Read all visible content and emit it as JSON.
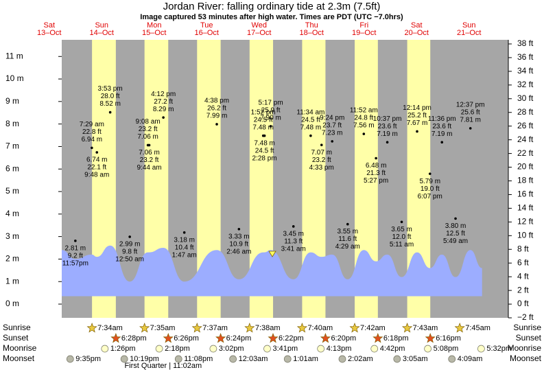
{
  "chart_data": {
    "type": "tide",
    "title": "Jordan River: falling  ordinary tide at 2.3m (7.5ft)",
    "subtitle": "Image captured 53 minutes after high water. Times are PDT (UTC −7.0hrs)",
    "ylim": [
      -0.61,
      11.74
    ],
    "yticks": [
      {
        "value": 0,
        "label": "0 m"
      },
      {
        "value": 1,
        "label": "1 m"
      },
      {
        "value": 2,
        "label": "2 m"
      },
      {
        "value": 3,
        "label": "3 m"
      },
      {
        "value": 4,
        "label": "4 m"
      },
      {
        "value": 5,
        "label": "5 m"
      },
      {
        "value": 6,
        "label": "6 m"
      },
      {
        "value": 7,
        "label": "7 m"
      },
      {
        "value": 8,
        "label": "8 m"
      },
      {
        "value": 9,
        "label": "9 m"
      },
      {
        "value": 10,
        "label": "10 m"
      },
      {
        "value": 11,
        "label": "11 m"
      }
    ],
    "y2lim": [
      -2,
      38.6
    ],
    "y2ticks": [
      {
        "value": -2,
        "label": "−2 ft"
      },
      {
        "value": 0,
        "label": "0 ft"
      },
      {
        "value": 2,
        "label": "2 ft"
      },
      {
        "value": 4,
        "label": "4 ft"
      },
      {
        "value": 6,
        "label": "6 ft"
      },
      {
        "value": 8,
        "label": "8 ft"
      },
      {
        "value": 10,
        "label": "10 ft"
      },
      {
        "value": 12,
        "label": "12 ft"
      },
      {
        "value": 14,
        "label": "14 ft"
      },
      {
        "value": 16,
        "label": "16 ft"
      },
      {
        "value": 18,
        "label": "18 ft"
      },
      {
        "value": 20,
        "label": "20 ft"
      },
      {
        "value": 22,
        "label": "22 ft"
      },
      {
        "value": 24,
        "label": "24 ft"
      },
      {
        "value": 26,
        "label": "26 ft"
      },
      {
        "value": 28,
        "label": "28 ft"
      },
      {
        "value": 30,
        "label": "30 ft"
      },
      {
        "value": 32,
        "label": "32 ft"
      },
      {
        "value": 34,
        "label": "34 ft"
      },
      {
        "value": 36,
        "label": "36 ft"
      },
      {
        "value": 38,
        "label": "38 ft"
      }
    ],
    "colors": {
      "night": "#a6a6a6",
      "day": "#ffffa8",
      "area": "#9cadff",
      "header": "#e00000"
    },
    "area": {
      "start": 2.4,
      "end": 1.6,
      "base": 0.35
    },
    "rows": {
      "sunrise": "Sunrise",
      "sunset": "Sunset",
      "moonrise": "Moonrise",
      "moonset": "Moonset"
    },
    "days": [
      {
        "weekday": "Sat",
        "date": "13–Oct",
        "moonset": "9:35pm",
        "tides": [
          {
            "time": "11:57pm",
            "m": 2.81,
            "m_label": "2.81 m",
            "ft": 9.2,
            "ft_label": "9.2 ft",
            "curve": 2.0
          }
        ]
      },
      {
        "weekday": "Sun",
        "date": "14–Oct",
        "sunrise": "7:34am",
        "sunset": "6:28pm",
        "moonrise": "1:26pm",
        "moonset": "10:19pm",
        "tides": [
          {
            "time": "7:29 am",
            "m": 6.94,
            "m_label": "6.94 m",
            "ft": 22.8,
            "ft_label": "22.8 ft",
            "curve": 2.2
          },
          {
            "time": "9:48 am",
            "m": 6.74,
            "m_label": "6.74 m",
            "ft": 22.1,
            "ft_label": "22.1 ft",
            "curve": 2.1
          },
          {
            "time": "3:53 pm",
            "m": 8.52,
            "m_label": "8.52 m",
            "ft": 28.0,
            "ft_label": "28.0 ft",
            "curve": 2.6
          }
        ]
      },
      {
        "weekday": "Mon",
        "date": "15–Oct",
        "sunrise": "7:35am",
        "sunset": "6:26pm",
        "moonrise": "2:18pm",
        "moonset": "11:08pm",
        "tides": [
          {
            "time": "12:50 am",
            "m": 2.99,
            "m_label": "2.99 m",
            "ft": 9.8,
            "ft_label": "9.8 ft",
            "curve": 1.0
          },
          {
            "time": "9:08 am",
            "m": 7.06,
            "m_label": "7.06 m",
            "ft": 23.2,
            "ft_label": "23.2 ft",
            "curve": 2.3
          },
          {
            "time": "9:44 am",
            "m": 7.06,
            "m_label": "7.06 m",
            "ft": 23.2,
            "ft_label": "23.2 ft",
            "curve": 2.3
          },
          {
            "time": "4:12 pm",
            "m": 8.29,
            "m_label": "8.29 m",
            "ft": 27.2,
            "ft_label": "27.2 ft",
            "curve": 2.5
          }
        ]
      },
      {
        "weekday": "Tue",
        "date": "16–Oct",
        "sunrise": "7:37am",
        "sunset": "6:24pm",
        "moonrise": "3:02pm",
        "phase": "First Quarter | 11:02am",
        "tides": [
          {
            "time": "1:47 am",
            "m": 3.18,
            "m_label": "3.18 m",
            "ft": 10.4,
            "ft_label": "10.4 ft",
            "curve": 1.0
          },
          {
            "time": "4:38 pm",
            "m": 7.99,
            "m_label": "7.99 m",
            "ft": 26.2,
            "ft_label": "26.2 ft",
            "curve": 2.4
          }
        ]
      },
      {
        "weekday": "Wed",
        "date": "17–Oct",
        "sunrise": "7:38am",
        "sunset": "6:22pm",
        "moonrise": "3:41pm",
        "moonset": "12:03am",
        "tides": [
          {
            "time": "2:46 am",
            "m": 3.33,
            "m_label": "3.33 m",
            "ft": 10.9,
            "ft_label": "10.9 ft",
            "curve": 1.1
          },
          {
            "time": "1:52 pm",
            "m": 7.48,
            "m_label": "7.48 m",
            "ft": 24.5,
            "ft_label": "24.5 ft",
            "curve": 2.3
          },
          {
            "time": "2:28 pm",
            "m": 7.48,
            "m_label": "7.48 m",
            "ft": 24.5,
            "ft_label": "24.5 ft",
            "curve": 2.3
          },
          {
            "time": "5:17 pm",
            "m": 7.9,
            "m_label": "7.90 m",
            "ft": 25.9,
            "ft_label": "25.9 ft",
            "curve": 2.4
          }
        ]
      },
      {
        "weekday": "Thu",
        "date": "18–Oct",
        "sunrise": "7:40am",
        "sunset": "6:20pm",
        "moonrise": "4:13pm",
        "moonset": "1:01am",
        "tides": [
          {
            "time": "3:41 am",
            "m": 3.45,
            "m_label": "3.45 m",
            "ft": 11.3,
            "ft_label": "11.3 ft",
            "curve": 1.1
          },
          {
            "time": "11:34 am",
            "m": 7.48,
            "m_label": "7.48 m",
            "ft": 24.5,
            "ft_label": "24.5 ft",
            "curve": 2.3
          },
          {
            "time": "4:33 pm",
            "m": 7.07,
            "m_label": "7.07 m",
            "ft": 23.2,
            "ft_label": "23.2 ft",
            "curve": 2.1
          },
          {
            "time": "9:24 pm",
            "m": 7.23,
            "m_label": "7.23 m",
            "ft": 23.7,
            "ft_label": "23.7 ft",
            "curve": 2.2
          }
        ]
      },
      {
        "weekday": "Fri",
        "date": "19–Oct",
        "sunrise": "7:42am",
        "sunset": "6:18pm",
        "moonrise": "4:42pm",
        "moonset": "2:02am",
        "tides": [
          {
            "time": "4:29 am",
            "m": 3.55,
            "m_label": "3.55 m",
            "ft": 11.6,
            "ft_label": "11.6 ft",
            "curve": 1.1
          },
          {
            "time": "11:52 am",
            "m": 7.56,
            "m_label": "7.56 m",
            "ft": 24.8,
            "ft_label": "24.8 ft",
            "curve": 2.4
          },
          {
            "time": "5:27 pm",
            "m": 6.48,
            "m_label": "6.48 m",
            "ft": 21.3,
            "ft_label": "21.3 ft",
            "curve": 1.9
          },
          {
            "time": "10:37 pm",
            "m": 7.19,
            "m_label": "7.19 m",
            "ft": 23.6,
            "ft_label": "23.6 ft",
            "curve": 2.2
          }
        ]
      },
      {
        "weekday": "Sat",
        "date": "20–Oct",
        "sunrise": "7:43am",
        "sunset": "6:16pm",
        "moonrise": "5:08pm",
        "moonset": "3:05am",
        "tides": [
          {
            "time": "5:11 am",
            "m": 3.65,
            "m_label": "3.65 m",
            "ft": 12.0,
            "ft_label": "12.0 ft",
            "curve": 1.2
          },
          {
            "time": "12:14 pm",
            "m": 7.67,
            "m_label": "7.67 m",
            "ft": 25.2,
            "ft_label": "25.2 ft",
            "curve": 2.3
          },
          {
            "time": "6:07 pm",
            "m": 5.79,
            "m_label": "5.79 m",
            "ft": 19.0,
            "ft_label": "19.0 ft",
            "curve": 1.6
          },
          {
            "time": "11:36 pm",
            "m": 7.19,
            "m_label": "7.19 m",
            "ft": 23.6,
            "ft_label": "23.6 ft",
            "curve": 2.2
          }
        ]
      },
      {
        "weekday": "Sun",
        "date": "21–Oct",
        "sunrise": "7:45am",
        "moonrise": "5:32pm",
        "moonset": "4:09am",
        "tides": [
          {
            "time": "5:49 am",
            "m": 3.8,
            "m_label": "3.80 m",
            "ft": 12.5,
            "ft_label": "12.5 ft",
            "curve": 1.2
          },
          {
            "time": "12:37 pm",
            "m": 7.81,
            "m_label": "7.81 m",
            "ft": 25.6,
            "ft_label": "25.6 ft",
            "curve": 2.4
          }
        ]
      }
    ]
  }
}
